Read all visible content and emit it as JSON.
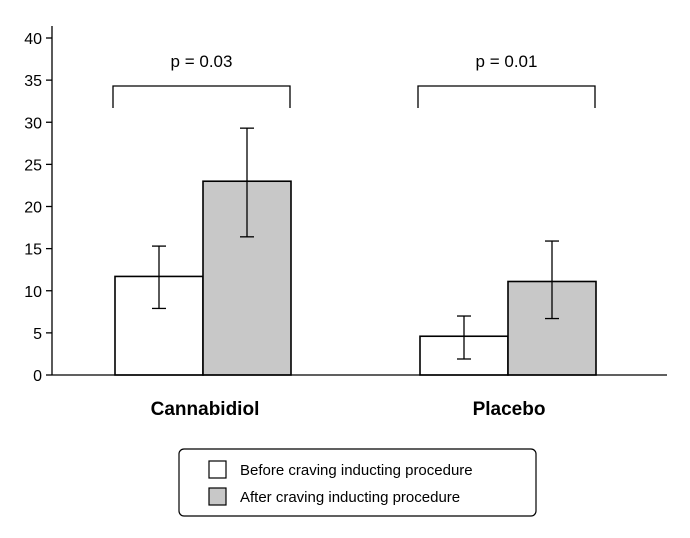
{
  "chart_data": {
    "type": "bar",
    "categories": [
      "Cannabidiol",
      "Placebo"
    ],
    "series": [
      {
        "name": "Before craving inducting procedure",
        "color": "#ffffff",
        "values": [
          11.7,
          4.6
        ],
        "error_low": [
          7.9,
          1.9
        ],
        "error_high": [
          15.3,
          7.0
        ]
      },
      {
        "name": "After craving inducting procedure",
        "color": "#c8c8c8",
        "values": [
          23.0,
          11.1
        ],
        "error_low": [
          16.4,
          6.7
        ],
        "error_high": [
          29.3,
          15.9
        ]
      }
    ],
    "ylim": [
      0,
      40
    ],
    "yticks": [
      0,
      5,
      10,
      15,
      20,
      25,
      30,
      35,
      40
    ],
    "annotations": [
      {
        "category": "Cannabidiol",
        "text": "p = 0.03"
      },
      {
        "category": "Placebo",
        "text": "p = 0.01"
      }
    ],
    "grid": false,
    "legend_position": "bottom-center"
  }
}
